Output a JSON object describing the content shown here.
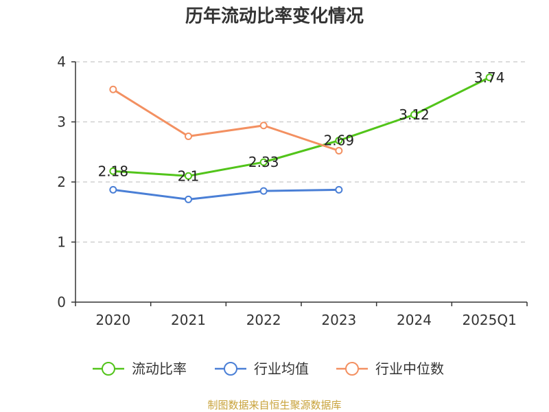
{
  "chart_data": {
    "type": "line",
    "title": "历年流动比率变化情况",
    "categories": [
      "2020",
      "2021",
      "2022",
      "2023",
      "2024",
      "2025Q1"
    ],
    "ylim": [
      0,
      4
    ],
    "yticks": [
      "0",
      "1",
      "2",
      "3",
      "4"
    ],
    "grid": true,
    "legend_position": "bottom",
    "series": [
      {
        "name": "流动比率",
        "color": "#52c41a",
        "values": [
          2.18,
          2.1,
          2.33,
          2.69,
          3.12,
          3.74
        ],
        "labels": [
          "2.18",
          "2.1",
          "2.33",
          "2.69",
          "3.12",
          "3.74"
        ]
      },
      {
        "name": "行业均值",
        "color": "#4a7fd6",
        "values": [
          1.87,
          1.71,
          1.85,
          1.87,
          null,
          null
        ]
      },
      {
        "name": "行业中位数",
        "color": "#f39061",
        "values": [
          3.54,
          2.76,
          2.94,
          2.52,
          null,
          null
        ]
      }
    ]
  },
  "source": "制图数据来自恒生聚源数据库"
}
